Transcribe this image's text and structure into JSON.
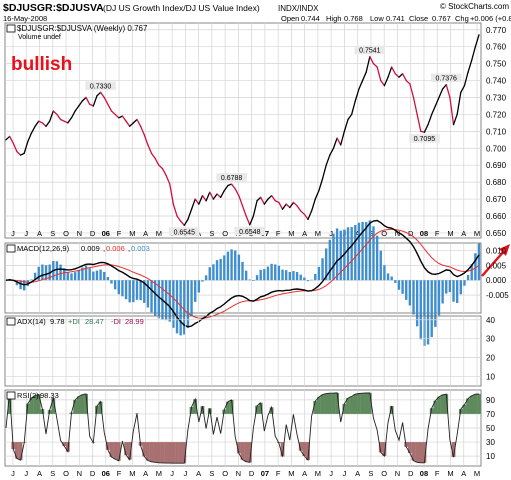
{
  "header": {
    "symbol": "$DJUSGR:$DJUSVA",
    "description": "(DJ US Growth Index/DJ US Value Index)",
    "exchange": "INDX/INDX",
    "brand": "© StockCharts.com",
    "date": "16-May-2008",
    "open_label": "Open",
    "open": "0.744",
    "high_label": "High",
    "high": "0.768",
    "low_label": "Low",
    "low": "0.741",
    "close_label": "Close",
    "close": "0.767",
    "chg_label": "Chg",
    "chg": "+0.006 (+0.82%)"
  },
  "annotation": {
    "text": "bullish",
    "color": "#e8101a",
    "arrow_color": "#e8101a"
  },
  "colors": {
    "up": "#000000",
    "down": "#d0103c",
    "macd_signal": "#e83030",
    "histogram": "#3f8fcf",
    "plus_di": "#2e7a4e",
    "minus_di": "#a01050",
    "rsi_above": "#5e8a5e",
    "rsi_below": "#a87070"
  },
  "chart_data": [
    {
      "type": "line",
      "name": "price",
      "legend": "$DJUSGR:$DJUSVA (Weekly) 0.767",
      "legend_sub": "Volume undef",
      "ylim": [
        0.647,
        0.774
      ],
      "yticks": [
        "0.650",
        "0.660",
        "0.670",
        "0.680",
        "0.690",
        "0.700",
        "0.710",
        "0.720",
        "0.730",
        "0.740",
        "0.750",
        "0.760",
        "0.770"
      ],
      "x_labels": [
        "J",
        "J",
        "A",
        "S",
        "O",
        "N",
        "D",
        "06",
        "F",
        "M",
        "A",
        "M",
        "J",
        "J",
        "A",
        "S",
        "O",
        "N",
        "D",
        "07",
        "F",
        "M",
        "A",
        "M",
        "J",
        "J",
        "A",
        "S",
        "O",
        "N",
        "D",
        "08",
        "F",
        "M",
        "A",
        "M"
      ],
      "y": [
        0.705,
        0.707,
        0.703,
        0.698,
        0.696,
        0.697,
        0.704,
        0.709,
        0.713,
        0.716,
        0.715,
        0.713,
        0.716,
        0.722,
        0.72,
        0.717,
        0.716,
        0.715,
        0.718,
        0.722,
        0.725,
        0.728,
        0.73,
        0.726,
        0.725,
        0.731,
        0.733,
        0.73,
        0.726,
        0.722,
        0.72,
        0.718,
        0.719,
        0.716,
        0.713,
        0.715,
        0.717,
        0.713,
        0.708,
        0.702,
        0.697,
        0.694,
        0.69,
        0.688,
        0.684,
        0.679,
        0.667,
        0.66,
        0.657,
        0.6545,
        0.658,
        0.664,
        0.67,
        0.667,
        0.672,
        0.669,
        0.674,
        0.67,
        0.673,
        0.671,
        0.675,
        0.678,
        0.6788,
        0.676,
        0.672,
        0.666,
        0.66,
        0.6548,
        0.66,
        0.669,
        0.671,
        0.667,
        0.67,
        0.672,
        0.669,
        0.668,
        0.664,
        0.667,
        0.665,
        0.668,
        0.666,
        0.663,
        0.661,
        0.658,
        0.663,
        0.67,
        0.675,
        0.682,
        0.69,
        0.696,
        0.7,
        0.706,
        0.702,
        0.71,
        0.717,
        0.72,
        0.728,
        0.735,
        0.74,
        0.745,
        0.7541,
        0.75,
        0.748,
        0.74,
        0.737,
        0.742,
        0.748,
        0.744,
        0.742,
        0.744,
        0.74,
        0.738,
        0.73,
        0.72,
        0.71,
        0.7095,
        0.714,
        0.72,
        0.725,
        0.73,
        0.735,
        0.7376,
        0.73,
        0.714,
        0.72,
        0.733,
        0.737,
        0.745,
        0.752,
        0.76,
        0.767
      ],
      "annotations": [
        {
          "label": "0.7330",
          "i": 26
        },
        {
          "label": "0.6545",
          "i": 49
        },
        {
          "label": "0.6788",
          "i": 62
        },
        {
          "label": "0.6548",
          "i": 67
        },
        {
          "label": "0.7541",
          "i": 100
        },
        {
          "label": "0.7095",
          "i": 115
        },
        {
          "label": "0.7376",
          "i": 121
        }
      ]
    },
    {
      "type": "line",
      "name": "macd",
      "legend_label": "MACD(12,26,9)",
      "macd": "0.009",
      "signal": "0.006",
      "hist": "0.003",
      "ylim": [
        -0.011,
        0.0125
      ],
      "yticks": [
        "0.010",
        "0.005",
        "0.000",
        "-0.005"
      ]
    },
    {
      "type": "line",
      "name": "adx",
      "legend_label": "ADX(14)",
      "adx": "9.78",
      "plus_label": "+DI",
      "plus": "28.47",
      "minus_label": "-DI",
      "minus": "28.99",
      "ylim": [
        5,
        42
      ],
      "yticks": [
        "40",
        "30",
        "20",
        "10"
      ]
    },
    {
      "type": "line",
      "name": "rsi",
      "legend_label": "RSI(2)",
      "value": "98.33",
      "ylim": [
        -4,
        104
      ],
      "yticks": [
        "90",
        "70",
        "50",
        "30",
        "10"
      ],
      "x_labels": [
        "J",
        "J",
        "A",
        "S",
        "O",
        "N",
        "D",
        "06",
        "F",
        "M",
        "A",
        "M",
        "J",
        "J",
        "A",
        "S",
        "O",
        "N",
        "D",
        "07",
        "F",
        "M",
        "A",
        "M",
        "J",
        "J",
        "A",
        "S",
        "O",
        "N",
        "D",
        "08",
        "F",
        "M",
        "A",
        "M"
      ]
    }
  ]
}
